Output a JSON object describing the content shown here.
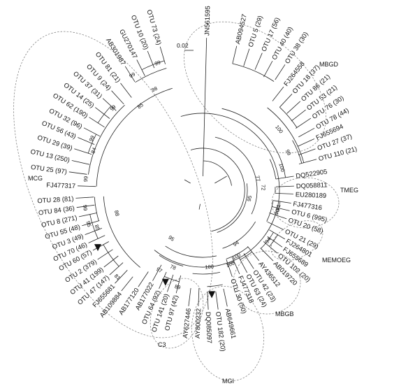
{
  "tree": {
    "scale_label": "0.02",
    "groups": [
      "MBGD",
      "TMEG",
      "MEMOEG",
      "MBGB",
      "MGI",
      "C3",
      "MCG"
    ],
    "leaves": [
      {
        "name": "JN561595",
        "angle": -88.5,
        "r": 218
      },
      {
        "name": "AB094527",
        "angle": -76.7,
        "r": 212
      },
      {
        "name": "OTU 5 (29)",
        "angle": -71.7,
        "r": 213
      },
      {
        "name": "OTU 17 (56)",
        "angle": -66.5,
        "r": 214
      },
      {
        "name": "OTU 40 (40)",
        "angle": -61.6,
        "r": 210
      },
      {
        "name": "OTU 38 (30)",
        "angle": -56.7,
        "r": 215
      },
      {
        "name": "FJ264558",
        "angle": -51.9,
        "r": 188
      },
      {
        "name": "OTU 18 (37)",
        "angle": -47.1,
        "r": 188
      },
      {
        "name": "OTU 86 (21)",
        "angle": -42.3,
        "r": 189
      },
      {
        "name": "OTU 53 (21)",
        "angle": -37.9,
        "r": 187
      },
      {
        "name": "OTU 76 (30)",
        "angle": -33.6,
        "r": 186
      },
      {
        "name": "OTU 78 (44)",
        "angle": -29.0,
        "r": 183
      },
      {
        "name": "FJ655694",
        "angle": -24.7,
        "r": 176
      },
      {
        "name": "OTU 27 (37)",
        "angle": -20.1,
        "r": 172
      },
      {
        "name": "OTU 110 (21)",
        "angle": -15.2,
        "r": 169
      },
      {
        "name": "DQ522905",
        "angle": -8.7,
        "r": 132
      },
      {
        "name": "DQ058811",
        "angle": -2.6,
        "r": 131
      },
      {
        "name": "EU280189",
        "angle": 2.4,
        "r": 130
      },
      {
        "name": "FJ477316",
        "angle": 8.3,
        "r": 128
      },
      {
        "name": "OTU 6 (995)",
        "angle": 13.3,
        "r": 128
      },
      {
        "name": "OTU 20 (58)",
        "angle": 18.8,
        "r": 127
      },
      {
        "name": "OTU 21 (29)",
        "angle": 26.0,
        "r": 129
      },
      {
        "name": "FJ264801",
        "angle": 30.7,
        "r": 137
      },
      {
        "name": "FJ655689",
        "angle": 35.5,
        "r": 140
      },
      {
        "name": "OTU 102 (20)",
        "angle": 40.1,
        "r": 140
      },
      {
        "name": "AB019720",
        "angle": 45.0,
        "r": 143
      },
      {
        "name": "AY436512",
        "angle": 51.3,
        "r": 129
      },
      {
        "name": "OTU 42 (23)",
        "angle": 56.9,
        "r": 134
      },
      {
        "name": "OTU 63 (24)",
        "angle": 61.6,
        "r": 134
      },
      {
        "name": "FJ477318",
        "angle": 66.2,
        "r": 131
      },
      {
        "name": "OTU 30 (50)",
        "angle": 71.1,
        "r": 131
      },
      {
        "name": "AB649661",
        "angle": 78.0,
        "r": 170
      },
      {
        "name": "OTU 182 (20)",
        "angle": 82.6,
        "r": 172
      },
      {
        "name": "DQ085097",
        "angle": 87.3,
        "r": 171
      },
      {
        "name": "AY800232",
        "angle": 92.1,
        "r": 166
      },
      {
        "name": "AY627446",
        "angle": 96.9,
        "r": 167
      },
      {
        "name": "OTU 97 (42)",
        "angle": 104.4,
        "r": 152
      },
      {
        "name": "OTU 141 (20)",
        "angle": 109.2,
        "r": 154
      },
      {
        "name": "OTU 64 (92)",
        "angle": 113.9,
        "r": 154
      },
      {
        "name": "AB177022",
        "angle": 118.9,
        "r": 148
      },
      {
        "name": "AB177120",
        "angle": 123.7,
        "r": 166
      },
      {
        "name": "AB109884",
        "angle": 128.9,
        "r": 185
      },
      {
        "name": "FJ655681",
        "angle": 133.3,
        "r": 183
      },
      {
        "name": "OTU 47 (147)",
        "angle": 137.7,
        "r": 180
      },
      {
        "name": "OTU 41 (199)",
        "angle": 142.1,
        "r": 179
      },
      {
        "name": "OTU 2 (379)",
        "angle": 146.6,
        "r": 180
      },
      {
        "name": "OTU 60 (57)",
        "angle": 151.3,
        "r": 179
      },
      {
        "name": "OTU 70 (46)",
        "angle": 155.2,
        "r": 180
      },
      {
        "name": "OTU 3 (49)",
        "angle": 159.3,
        "r": 180
      },
      {
        "name": "OTU 55 (48)",
        "angle": 163.6,
        "r": 180
      },
      {
        "name": "OTU 8 (271)",
        "angle": 167.9,
        "r": 181
      },
      {
        "name": "OTU 84 (36)",
        "angle": 172.2,
        "r": 182
      },
      {
        "name": "OTU 28 (81)",
        "angle": 176.4,
        "r": 182
      },
      {
        "name": "FJ477317",
        "angle": -178.0,
        "r": 179
      },
      {
        "name": "OTU 25 (97)",
        "angle": -172.2,
        "r": 193
      },
      {
        "name": "OTU 13 (250)",
        "angle": -167.2,
        "r": 192
      },
      {
        "name": "OTU 29 (39)",
        "angle": -162.1,
        "r": 193
      },
      {
        "name": "OTU 56 (43)",
        "angle": -157.1,
        "r": 194
      },
      {
        "name": "OTU 32 (96)",
        "angle": -152.3,
        "r": 192
      },
      {
        "name": "OTU 62 (190)",
        "angle": -147.3,
        "r": 193
      },
      {
        "name": "OTU 14 (25)",
        "angle": -142.4,
        "r": 194
      },
      {
        "name": "OTU 37 (31)",
        "angle": -137.4,
        "r": 194
      },
      {
        "name": "OTU 9 (24)",
        "angle": -132.5,
        "r": 193
      },
      {
        "name": "OTU 81 (21)",
        "angle": -127.5,
        "r": 193
      },
      {
        "name": "AB301987",
        "angle": -122.0,
        "r": 209
      },
      {
        "name": "GU270147",
        "angle": -116.8,
        "r": 209
      },
      {
        "name": "OTU 10 (20)",
        "angle": -111.6,
        "r": 214
      },
      {
        "name": "OTU 73 (24)",
        "angle": -106.5,
        "r": 214
      }
    ],
    "bootstrap": [
      {
        "v": "99",
        "angle": -109.5,
        "r": 193
      },
      {
        "v": "99",
        "angle": -121.5,
        "r": 193
      },
      {
        "v": "98",
        "angle": -115.5,
        "r": 160
      },
      {
        "v": "85",
        "angle": -126.5,
        "r": 150
      },
      {
        "v": "99",
        "angle": -137.5,
        "r": 174
      },
      {
        "v": "99",
        "angle": -155,
        "r": 175
      },
      {
        "v": "84",
        "angle": -160,
        "r": 166
      },
      {
        "v": "99",
        "angle": -174.5,
        "r": 168
      },
      {
        "v": "99",
        "angle": 171.5,
        "r": 170
      },
      {
        "v": "95",
        "angle": 163.5,
        "r": 170
      },
      {
        "v": "85",
        "angle": 160.5,
        "r": 160
      },
      {
        "v": "81",
        "angle": 134.5,
        "r": 174
      },
      {
        "v": "88",
        "angle": 165,
        "r": 127
      },
      {
        "v": "95",
        "angle": 123,
        "r": 82
      },
      {
        "v": "97",
        "angle": 118.5,
        "r": 130
      },
      {
        "v": "78",
        "angle": 111,
        "r": 118
      },
      {
        "v": "89",
        "angle": 104.5,
        "r": 143
      },
      {
        "v": "100",
        "angle": 85,
        "r": 110
      },
      {
        "v": "100",
        "angle": 69.5,
        "r": 113
      },
      {
        "v": "100",
        "angle": 63,
        "r": 106
      },
      {
        "v": "94",
        "angle": 58,
        "r": 90
      },
      {
        "v": "94",
        "angle": 37.5,
        "r": 118
      },
      {
        "v": "95",
        "angle": 10,
        "r": 68
      },
      {
        "v": "71",
        "angle": 12.8,
        "r": 111
      },
      {
        "v": "70",
        "angle": 16.2,
        "r": 111
      },
      {
        "v": "72",
        "angle": -2.5,
        "r": 87
      },
      {
        "v": "77",
        "angle": -12,
        "r": 81
      },
      {
        "v": "100",
        "angle": -16,
        "r": 118
      },
      {
        "v": "99",
        "angle": -23.8,
        "r": 134
      },
      {
        "v": "100",
        "angle": -38.5,
        "r": 140
      }
    ],
    "triangles": [
      {
        "angle": 151.3,
        "r": 171
      },
      {
        "angle": 112,
        "r": 142
      },
      {
        "angle": 85,
        "r": 150
      }
    ]
  }
}
